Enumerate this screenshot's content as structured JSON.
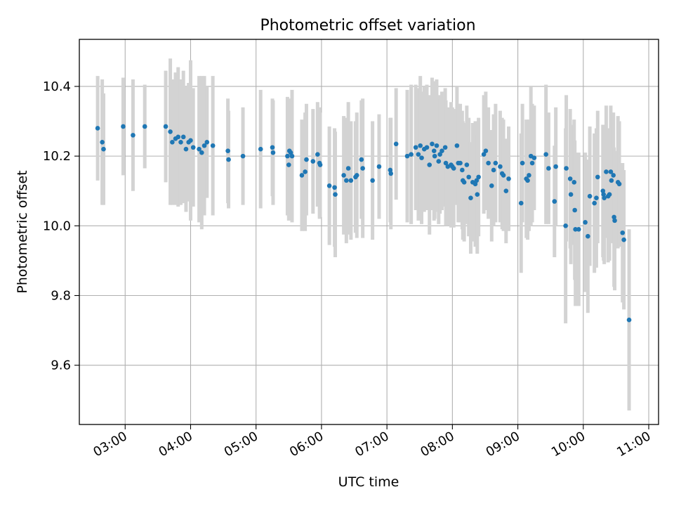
{
  "chart_data": {
    "type": "scatter",
    "title": "Photometric offset variation",
    "xlabel": "UTC time",
    "ylabel": "Photometric offset",
    "x_unit": "UTC hour (decimal)",
    "xlim": [
      2.3,
      11.15
    ],
    "ylim": [
      9.43,
      10.535
    ],
    "x_ticks": [
      3,
      4,
      5,
      6,
      7,
      8,
      9,
      10,
      11
    ],
    "x_tick_labels": [
      "03:00",
      "04:00",
      "05:00",
      "06:00",
      "07:00",
      "08:00",
      "09:00",
      "10:00",
      "11:00"
    ],
    "y_ticks": [
      9.6,
      9.8,
      10.0,
      10.2,
      10.4
    ],
    "y_tick_labels": [
      "9.6",
      "9.8",
      "10.0",
      "10.2",
      "10.4"
    ],
    "grid": true,
    "legend": false,
    "colors": {
      "points": "#1f77b4",
      "errorbars": "#d3d3d3",
      "grid": "#b0b0b0"
    },
    "points": [
      [
        2.58,
        10.28,
        0.15
      ],
      [
        2.65,
        10.24,
        0.18
      ],
      [
        2.67,
        10.22,
        0.16
      ],
      [
        2.97,
        10.285,
        0.14
      ],
      [
        3.12,
        10.26,
        0.16
      ],
      [
        3.3,
        10.285,
        0.12
      ],
      [
        3.62,
        10.285,
        0.16
      ],
      [
        3.69,
        10.27,
        0.21
      ],
      [
        3.72,
        10.24,
        0.18
      ],
      [
        3.77,
        10.25,
        0.19
      ],
      [
        3.81,
        10.255,
        0.2
      ],
      [
        3.85,
        10.24,
        0.18
      ],
      [
        3.89,
        10.255,
        0.19
      ],
      [
        3.93,
        10.22,
        0.18
      ],
      [
        3.97,
        10.24,
        0.17
      ],
      [
        4.0,
        10.245,
        0.23
      ],
      [
        4.04,
        10.225,
        0.17
      ],
      [
        4.13,
        10.22,
        0.21
      ],
      [
        4.17,
        10.21,
        0.22
      ],
      [
        4.21,
        10.23,
        0.2
      ],
      [
        4.25,
        10.24,
        0.16
      ],
      [
        4.34,
        10.23,
        0.2
      ],
      [
        4.57,
        10.215,
        0.15
      ],
      [
        4.58,
        10.19,
        0.14
      ],
      [
        4.8,
        10.2,
        0.14
      ],
      [
        5.07,
        10.22,
        0.17
      ],
      [
        5.25,
        10.225,
        0.14
      ],
      [
        5.26,
        10.21,
        0.15
      ],
      [
        5.48,
        10.2,
        0.17
      ],
      [
        5.51,
        10.215,
        0.15
      ],
      [
        5.53,
        10.21,
        0.15
      ],
      [
        5.55,
        10.2,
        0.19
      ],
      [
        5.5,
        10.175,
        0.16
      ],
      [
        5.7,
        10.145,
        0.16
      ],
      [
        5.75,
        10.155,
        0.17
      ],
      [
        5.77,
        10.19,
        0.16
      ],
      [
        5.87,
        10.185,
        0.15
      ],
      [
        5.94,
        10.205,
        0.15
      ],
      [
        5.97,
        10.18,
        0.16
      ],
      [
        5.98,
        10.175,
        0.15
      ],
      [
        6.12,
        10.115,
        0.17
      ],
      [
        6.2,
        10.11,
        0.17
      ],
      [
        6.21,
        10.09,
        0.18
      ],
      [
        6.34,
        10.145,
        0.17
      ],
      [
        6.38,
        10.13,
        0.18
      ],
      [
        6.41,
        10.165,
        0.19
      ],
      [
        6.45,
        10.13,
        0.17
      ],
      [
        6.52,
        10.14,
        0.16
      ],
      [
        6.54,
        10.145,
        0.18
      ],
      [
        6.61,
        10.19,
        0.17
      ],
      [
        6.63,
        10.165,
        0.2
      ],
      [
        6.78,
        10.13,
        0.17
      ],
      [
        6.88,
        10.17,
        0.15
      ],
      [
        7.05,
        10.16,
        0.15
      ],
      [
        7.06,
        10.15,
        0.16
      ],
      [
        7.14,
        10.235,
        0.16
      ],
      [
        7.31,
        10.2,
        0.19
      ],
      [
        7.37,
        10.205,
        0.2
      ],
      [
        7.44,
        10.225,
        0.18
      ],
      [
        7.48,
        10.205,
        0.19
      ],
      [
        7.51,
        10.23,
        0.2
      ],
      [
        7.53,
        10.195,
        0.19
      ],
      [
        7.57,
        10.22,
        0.18
      ],
      [
        7.61,
        10.225,
        0.18
      ],
      [
        7.65,
        10.175,
        0.2
      ],
      [
        7.69,
        10.235,
        0.19
      ],
      [
        7.72,
        10.215,
        0.2
      ],
      [
        7.73,
        10.2,
        0.18
      ],
      [
        7.76,
        10.23,
        0.19
      ],
      [
        7.79,
        10.185,
        0.18
      ],
      [
        7.81,
        10.205,
        0.17
      ],
      [
        7.84,
        10.215,
        0.17
      ],
      [
        7.89,
        10.225,
        0.17
      ],
      [
        7.9,
        10.18,
        0.18
      ],
      [
        7.93,
        10.17,
        0.17
      ],
      [
        7.98,
        10.175,
        0.18
      ],
      [
        8.0,
        10.17,
        0.17
      ],
      [
        8.02,
        10.165,
        0.17
      ],
      [
        8.07,
        10.23,
        0.17
      ],
      [
        8.09,
        10.18,
        0.17
      ],
      [
        8.12,
        10.18,
        0.17
      ],
      [
        8.15,
        10.16,
        0.17
      ],
      [
        8.16,
        10.13,
        0.17
      ],
      [
        8.18,
        10.125,
        0.17
      ],
      [
        8.22,
        10.175,
        0.17
      ],
      [
        8.25,
        10.14,
        0.17
      ],
      [
        8.28,
        10.08,
        0.16
      ],
      [
        8.31,
        10.125,
        0.17
      ],
      [
        8.35,
        10.12,
        0.18
      ],
      [
        8.37,
        10.13,
        0.17
      ],
      [
        8.38,
        10.09,
        0.17
      ],
      [
        8.4,
        10.14,
        0.17
      ],
      [
        8.48,
        10.205,
        0.17
      ],
      [
        8.51,
        10.215,
        0.17
      ],
      [
        8.55,
        10.18,
        0.16
      ],
      [
        8.6,
        10.115,
        0.16
      ],
      [
        8.63,
        10.16,
        0.16
      ],
      [
        8.66,
        10.18,
        0.17
      ],
      [
        8.73,
        10.17,
        0.16
      ],
      [
        8.76,
        10.15,
        0.16
      ],
      [
        8.78,
        10.145,
        0.16
      ],
      [
        8.82,
        10.1,
        0.15
      ],
      [
        8.86,
        10.135,
        0.15
      ],
      [
        9.05,
        10.065,
        0.2
      ],
      [
        9.07,
        10.18,
        0.17
      ],
      [
        9.13,
        10.135,
        0.17
      ],
      [
        9.15,
        10.13,
        0.17
      ],
      [
        9.17,
        10.145,
        0.16
      ],
      [
        9.2,
        10.2,
        0.2
      ],
      [
        9.22,
        10.18,
        0.17
      ],
      [
        9.25,
        10.195,
        0.15
      ],
      [
        9.43,
        10.205,
        0.2
      ],
      [
        9.47,
        10.165,
        0.16
      ],
      [
        9.56,
        10.07,
        0.16
      ],
      [
        9.58,
        10.17,
        0.17
      ],
      [
        9.73,
        10.0,
        0.28
      ],
      [
        9.74,
        10.165,
        0.21
      ],
      [
        9.8,
        10.135,
        0.2
      ],
      [
        9.81,
        10.09,
        0.2
      ],
      [
        9.86,
        10.125,
        0.18
      ],
      [
        9.87,
        10.045,
        0.2
      ],
      [
        9.88,
        9.99,
        0.22
      ],
      [
        9.93,
        9.99,
        0.22
      ],
      [
        10.03,
        10.01,
        0.2
      ],
      [
        10.07,
        9.97,
        0.22
      ],
      [
        10.1,
        10.085,
        0.2
      ],
      [
        10.17,
        10.065,
        0.2
      ],
      [
        10.2,
        10.08,
        0.2
      ],
      [
        10.22,
        10.14,
        0.19
      ],
      [
        10.3,
        10.1,
        0.19
      ],
      [
        10.31,
        10.09,
        0.19
      ],
      [
        10.32,
        10.08,
        0.19
      ],
      [
        10.35,
        10.155,
        0.19
      ],
      [
        10.38,
        10.085,
        0.19
      ],
      [
        10.4,
        10.09,
        0.19
      ],
      [
        10.42,
        10.155,
        0.19
      ],
      [
        10.43,
        10.13,
        0.18
      ],
      [
        10.46,
        10.145,
        0.18
      ],
      [
        10.47,
        10.025,
        0.2
      ],
      [
        10.48,
        10.015,
        0.2
      ],
      [
        10.53,
        10.125,
        0.19
      ],
      [
        10.55,
        10.12,
        0.18
      ],
      [
        10.6,
        9.98,
        0.2
      ],
      [
        10.62,
        9.96,
        0.2
      ],
      [
        10.7,
        9.73,
        0.26
      ]
    ]
  }
}
